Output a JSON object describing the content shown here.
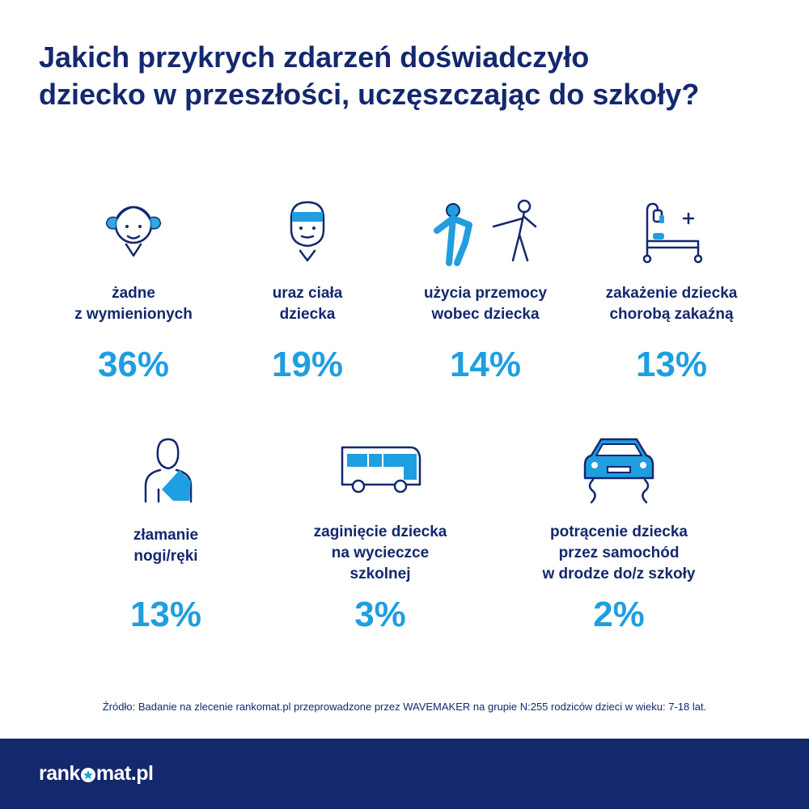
{
  "title": {
    "line1": "Jakich przykrych zdarzeń doświadczyło",
    "line2": "dziecko w przeszłości, uczęszczając do szkoły?"
  },
  "stats": [
    {
      "icon": "girl-icon",
      "label": [
        "żadne",
        "z wymienionych"
      ],
      "value": "36%"
    },
    {
      "icon": "bandaged-head-icon",
      "label": [
        "uraz ciała",
        "dziecka"
      ],
      "value": "19%"
    },
    {
      "icon": "violence-icon",
      "label": [
        "użycia przemocy",
        "wobec dziecka"
      ],
      "value": "14%"
    },
    {
      "icon": "hospital-bed-icon",
      "label": [
        "zakażenie dziecka",
        "chorobą zakaźną"
      ],
      "value": "13%"
    },
    {
      "icon": "arm-sling-icon",
      "label": [
        "złamanie",
        "nogi/ręki"
      ],
      "value": "13%"
    },
    {
      "icon": "bus-icon",
      "label": [
        "zaginięcie dziecka",
        "na wycieczce",
        "szkolnej"
      ],
      "value": "3%"
    },
    {
      "icon": "car-skid-icon",
      "label": [
        "potrącenie dziecka",
        "przez samochód",
        "w drodze do/z szkoły"
      ],
      "value": "2%"
    }
  ],
  "source": "Źródło: Badanie na zlecenie rankomat.pl przeprowadzone przez WAVEMAKER na grupie N:255 rodziców dzieci w wieku: 7-18 lat.",
  "footer": {
    "logo_left": "rank",
    "logo_right": "mat.pl"
  },
  "colors": {
    "navy": "#14286e",
    "accent": "#1f9ee0",
    "background": "#ffffff"
  }
}
